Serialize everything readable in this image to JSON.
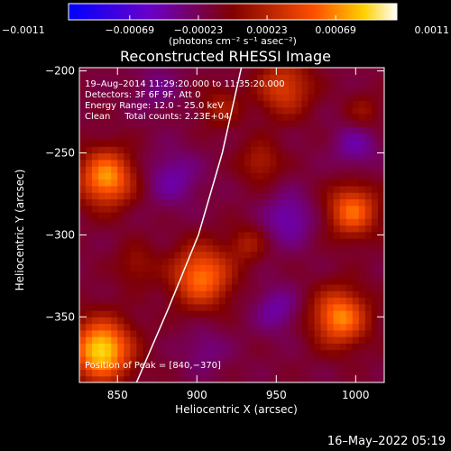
{
  "chart_data": {
    "type": "heatmap",
    "title": "Reconstructed RHESSI Image",
    "xlabel": "Heliocentric X (arcsec)",
    "ylabel": "Heliocentric Y (arcsec)",
    "xlim": [
      826,
      1018
    ],
    "ylim": [
      -390,
      -198
    ],
    "x_ticks": [
      850,
      900,
      950,
      1000
    ],
    "x_tick_labels": [
      "850",
      "900",
      "950",
      "1000"
    ],
    "y_ticks": [
      -200,
      -250,
      -300,
      -350
    ],
    "y_tick_labels": [
      "−200",
      "−250",
      "−300",
      "−350"
    ],
    "colorbar": {
      "range": [
        -0.0011,
        0.0011
      ],
      "tick_values": [
        -0.0011,
        -0.00069,
        -0.00023,
        0.00023,
        0.00069,
        0.0011
      ],
      "tick_labels": [
        "−0.0011",
        "−0.00069",
        "−0.00023",
        "0.00023",
        "0.00069",
        "0.0011"
      ],
      "unit_label": "(photons cm⁻² s⁻¹ asec⁻²)",
      "colormap": "rhessi-blue-purple-red-yellow-white"
    },
    "annotations": [
      "19–Aug–2014 11:29:20.000 to 11:35:20.000",
      "Detectors: 3F 6F 9F, Att 0",
      "Energy Range: 12.0 – 25.0 keV",
      "Clean     Total counts: 2.23E+04"
    ],
    "peak_label": "Position of Peak = [840,−370]",
    "peak": [
      840,
      -370
    ],
    "limb": {
      "description": "solar limb arc",
      "points": [
        [
          862,
          -390
        ],
        [
          882,
          -345
        ],
        [
          901,
          -300
        ],
        [
          916,
          -250
        ],
        [
          928,
          -198
        ]
      ]
    },
    "sources": [
      {
        "x": 840,
        "y": -370,
        "amplitude": 0.0011,
        "sigma": 13
      },
      {
        "x": 843,
        "y": -265,
        "amplitude": 0.0009,
        "sigma": 12
      },
      {
        "x": 903,
        "y": -325,
        "amplitude": 0.0008,
        "sigma": 13
      },
      {
        "x": 990,
        "y": -350,
        "amplitude": 0.00085,
        "sigma": 12
      },
      {
        "x": 998,
        "y": -285,
        "amplitude": 0.00075,
        "sigma": 11
      },
      {
        "x": 955,
        "y": -210,
        "amplitude": 0.00055,
        "sigma": 12
      },
      {
        "x": 940,
        "y": -255,
        "amplitude": 0.00035,
        "sigma": 9
      },
      {
        "x": 932,
        "y": -305,
        "amplitude": 0.0003,
        "sigma": 8
      },
      {
        "x": 915,
        "y": -222,
        "amplitude": 0.0003,
        "sigma": 9
      },
      {
        "x": 862,
        "y": -318,
        "amplitude": 0.00025,
        "sigma": 9
      },
      {
        "x": 1005,
        "y": -225,
        "amplitude": 0.00025,
        "sigma": 8
      },
      {
        "x": 885,
        "y": -265,
        "amplitude": -0.0003,
        "sigma": 12
      },
      {
        "x": 958,
        "y": -290,
        "amplitude": -0.00035,
        "sigma": 11
      },
      {
        "x": 950,
        "y": -345,
        "amplitude": -0.0003,
        "sigma": 10
      },
      {
        "x": 1000,
        "y": -245,
        "amplitude": -0.0003,
        "sigma": 10
      },
      {
        "x": 875,
        "y": -210,
        "amplitude": -0.0002,
        "sigma": 10
      },
      {
        "x": 905,
        "y": -370,
        "amplitude": -0.0002,
        "sigma": 10
      }
    ]
  },
  "footer": {
    "timestamp": "16–May–2022 05:19"
  }
}
